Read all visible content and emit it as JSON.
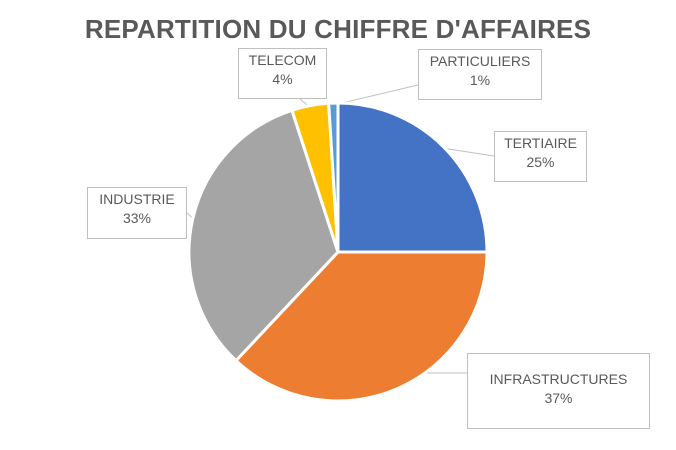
{
  "chart_data": {
    "type": "pie",
    "title": "REPARTITION DU CHIFFRE D'AFFAIRES",
    "categories": [
      "TERTIAIRE",
      "INFRASTRUCTURES",
      "INDUSTRIE",
      "TELECOM",
      "PARTICULIERS"
    ],
    "values": [
      25,
      37,
      33,
      4,
      1
    ],
    "value_labels": [
      "25%",
      "37%",
      "33%",
      "4%",
      "1%"
    ],
    "colors": [
      "#4472c4",
      "#ed7d31",
      "#a5a5a5",
      "#ffc000",
      "#5b9bd5"
    ],
    "start_angle_deg": 0,
    "direction": "clockwise",
    "legend": "none",
    "data_labels": "callouts"
  }
}
